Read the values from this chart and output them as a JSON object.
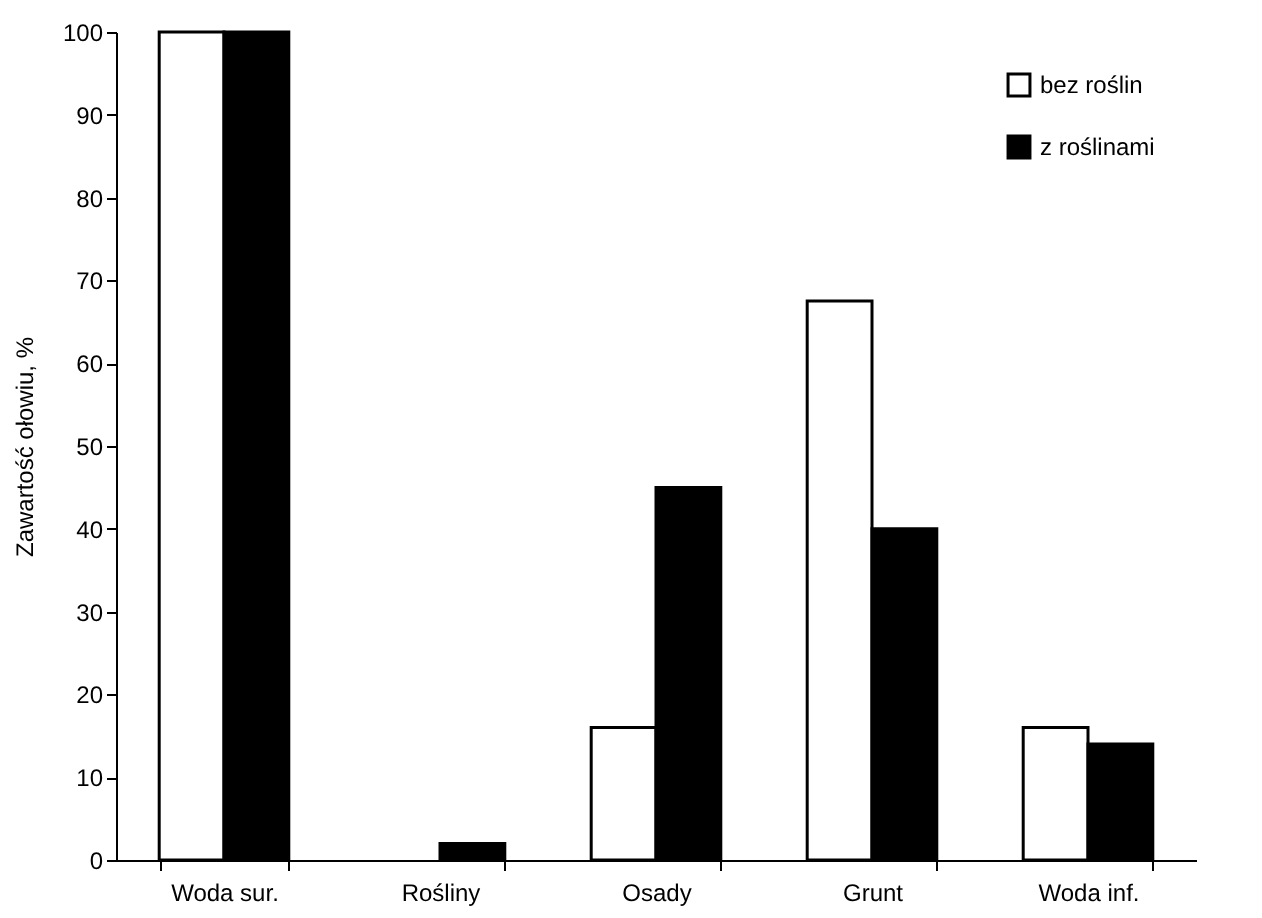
{
  "chart_data": {
    "type": "bar",
    "ylabel": "Zawartość ołowiu, %",
    "categories": [
      "Woda sur.",
      "Rośliny",
      "Osady",
      "Grunt",
      "Woda inf."
    ],
    "series": [
      {
        "name": "bez roślin",
        "color": "#ffffff",
        "values": [
          100,
          0,
          16,
          67.5,
          16
        ]
      },
      {
        "name": "z roślinami",
        "color": "#000000",
        "values": [
          100,
          2,
          45,
          40,
          14
        ]
      }
    ],
    "ylim": [
      0,
      100
    ],
    "yticks": [
      0,
      10,
      20,
      30,
      40,
      50,
      60,
      70,
      80,
      90,
      100
    ],
    "grid": false,
    "legend": "top right"
  }
}
